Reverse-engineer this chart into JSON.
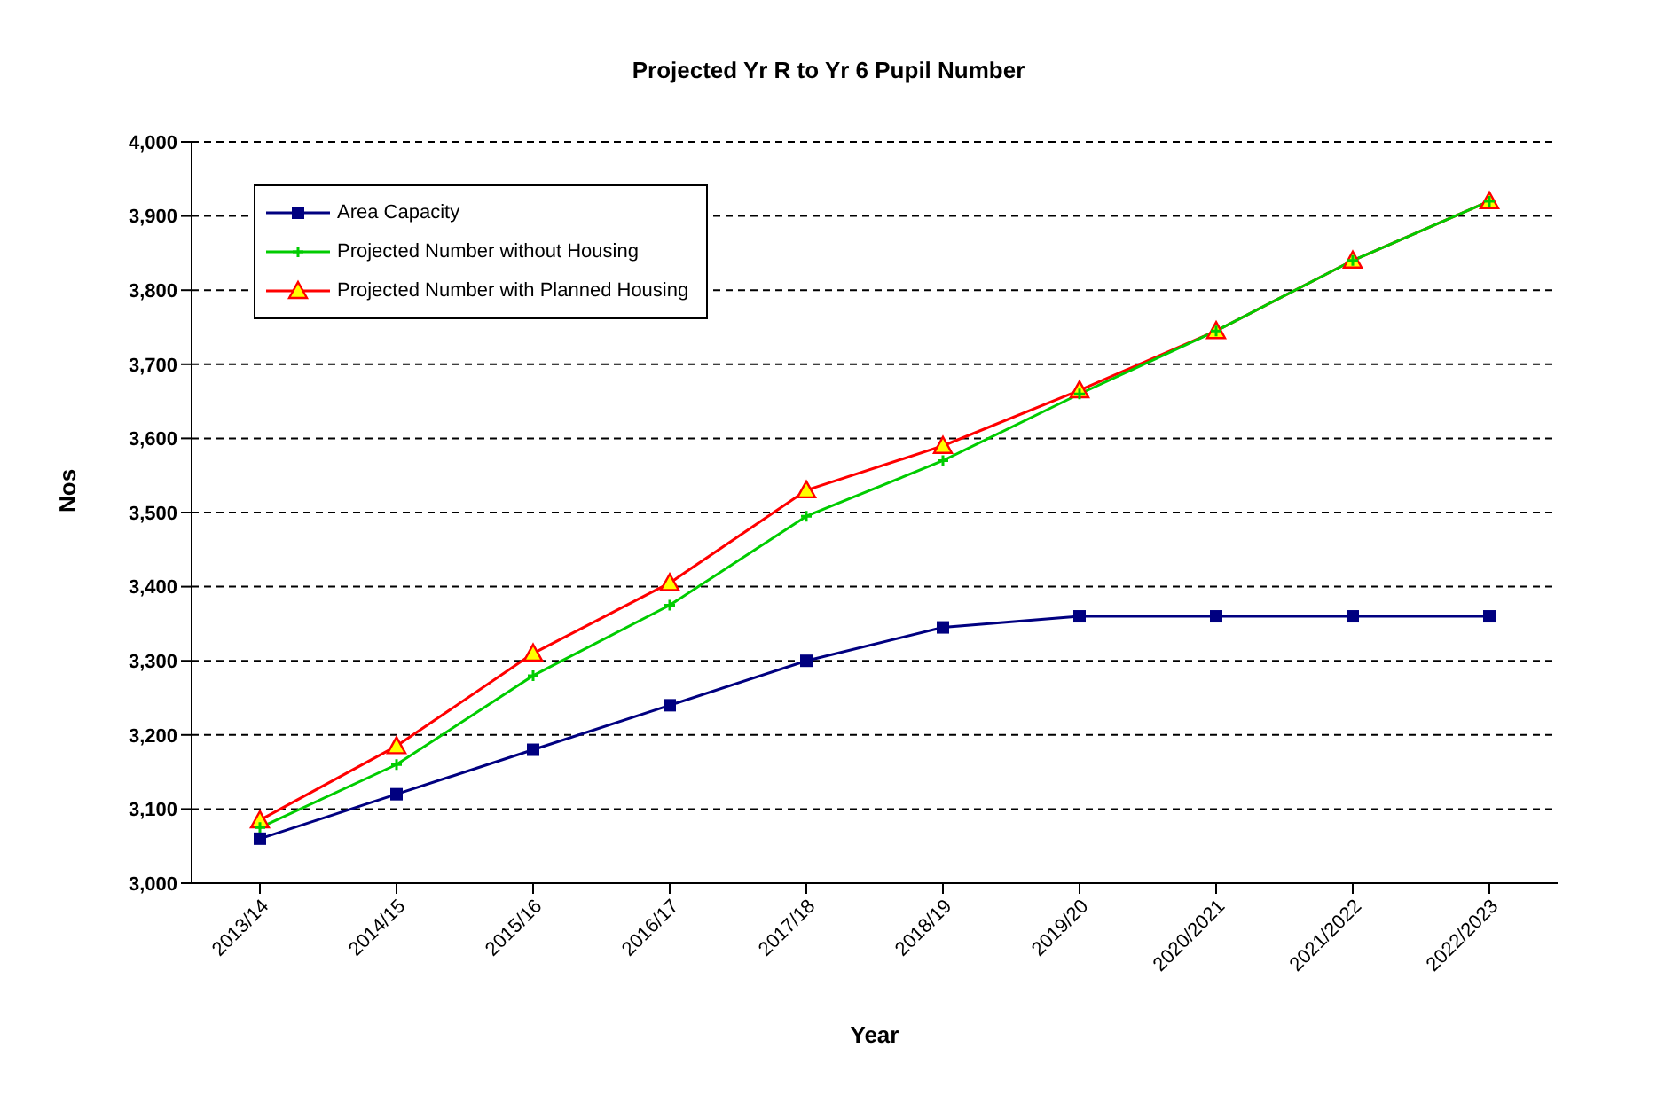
{
  "chart_data": {
    "type": "line",
    "title": "Projected Yr R to Yr 6 Pupil Number",
    "xlabel": "Year",
    "ylabel": "Nos",
    "categories": [
      "2013/14",
      "2014/15",
      "2015/16",
      "2016/17",
      "2017/18",
      "2018/19",
      "2019/20",
      "2020/2021",
      "2021/2022",
      "2022/2023"
    ],
    "series": [
      {
        "name": "Area  Capacity",
        "color": "#000080",
        "marker": "square",
        "values": [
          3060,
          3120,
          3180,
          3240,
          3300,
          3345,
          3360,
          3360,
          3360,
          3360
        ]
      },
      {
        "name": "Projected Number without Housing",
        "color": "#00cc00",
        "marker": "cross",
        "values": [
          3075,
          3160,
          3280,
          3375,
          3495,
          3570,
          3660,
          3745,
          3840,
          3920
        ]
      },
      {
        "name": "Projected Number with Planned Housing",
        "color": "#ff0000",
        "marker": "triangle",
        "values": [
          3085,
          3185,
          3310,
          3405,
          3530,
          3590,
          3665,
          3745,
          3840,
          3920
        ]
      }
    ],
    "ylim": [
      3000,
      4000
    ],
    "yticks": [
      {
        "value": 3000,
        "label": "3,000"
      },
      {
        "value": 3100,
        "label": "3,100"
      },
      {
        "value": 3200,
        "label": "3,200"
      },
      {
        "value": 3300,
        "label": "3,300"
      },
      {
        "value": 3400,
        "label": "3,400"
      },
      {
        "value": 3500,
        "label": "3,500"
      },
      {
        "value": 3600,
        "label": "3,600"
      },
      {
        "value": 3700,
        "label": "3,700"
      },
      {
        "value": 3800,
        "label": "3,800"
      },
      {
        "value": 3900,
        "label": "3,900"
      },
      {
        "value": 4000,
        "label": "4,000"
      }
    ],
    "grid": "y",
    "legend": "top left"
  }
}
